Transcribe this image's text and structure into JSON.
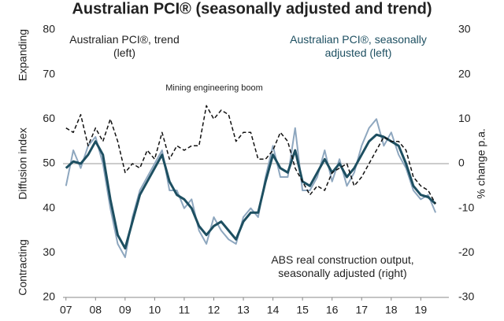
{
  "chart_data": {
    "type": "line",
    "title": "Australian PCI® (seasonally adjusted and trend)",
    "y_label": "Diffusion index",
    "y_label_top": "Expanding",
    "y_label_bottom": "Contracting",
    "y2_label": "% change p.a.",
    "annotation": "Mining engineering boom",
    "x": [
      7,
      7.25,
      7.5,
      7.75,
      8,
      8.25,
      8.5,
      8.75,
      9,
      9.25,
      9.5,
      9.75,
      10,
      10.25,
      10.5,
      10.75,
      11,
      11.25,
      11.5,
      11.75,
      12,
      12.25,
      12.5,
      12.75,
      13,
      13.25,
      13.5,
      13.75,
      14,
      14.25,
      14.5,
      14.75,
      15,
      15.25,
      15.5,
      15.75,
      16,
      16.25,
      16.5,
      16.75,
      17,
      17.25,
      17.5,
      17.75,
      18,
      18.25,
      18.5,
      18.75,
      19,
      19.25,
      19.5
    ],
    "xlim": [
      6.9,
      19.95
    ],
    "xticks": [
      {
        "value": 7,
        "label": "07"
      },
      {
        "value": 8,
        "label": "08"
      },
      {
        "value": 9,
        "label": "09"
      },
      {
        "value": 10,
        "label": "10"
      },
      {
        "value": 11,
        "label": "11"
      },
      {
        "value": 12,
        "label": "12"
      },
      {
        "value": 13,
        "label": "13"
      },
      {
        "value": 14,
        "label": "14"
      },
      {
        "value": 15,
        "label": "15"
      },
      {
        "value": 16,
        "label": "16"
      },
      {
        "value": 17,
        "label": "17"
      },
      {
        "value": 18,
        "label": "18"
      },
      {
        "value": 19,
        "label": "19"
      }
    ],
    "ylim": [
      20,
      80
    ],
    "yticks": [
      20,
      30,
      40,
      50,
      60,
      70,
      80
    ],
    "y2lim": [
      -30,
      30
    ],
    "y2ticks": [
      -30,
      -20,
      -10,
      0,
      10,
      20,
      30
    ],
    "hline": 50,
    "series": [
      {
        "name": "Australian PCI®, seasonally adjusted (left)",
        "color": "#8ea7bf",
        "width": 2,
        "values": [
          45,
          53,
          49,
          54,
          56,
          50,
          40,
          32,
          29,
          38,
          44,
          47,
          50,
          53,
          44,
          44,
          40,
          42,
          35,
          32,
          38,
          35,
          33,
          32,
          38,
          40,
          38,
          47,
          54,
          47,
          47,
          58,
          44,
          44,
          47,
          53,
          46,
          51,
          45,
          48,
          54,
          58,
          60,
          54,
          57,
          52,
          49,
          44,
          42,
          43,
          39
        ]
      },
      {
        "name": "Australian PCI®, trend (left)",
        "color": "#1d4f61",
        "width": 3,
        "values": [
          49,
          50.5,
          50,
          52,
          55,
          52,
          42,
          34,
          31,
          37,
          43,
          46,
          49,
          52,
          46,
          43,
          42,
          40,
          36,
          34,
          36,
          37,
          35,
          33,
          37,
          39,
          39,
          46,
          52,
          49,
          48,
          53,
          46,
          45,
          48,
          51,
          48,
          50,
          47,
          49,
          52,
          55,
          56.5,
          56,
          55,
          54,
          50,
          45,
          43,
          42.5,
          41
        ]
      },
      {
        "name": "ABS real construction output, seasonally adjusted (right)",
        "color": "#111111",
        "width": 1.5,
        "dash": "5,3",
        "axis": "y2",
        "values": [
          8,
          7,
          11,
          4,
          8,
          5,
          10,
          5,
          -2,
          0,
          -1,
          3,
          1,
          7,
          1,
          4,
          3,
          4,
          4,
          13,
          10,
          12,
          11,
          5,
          7,
          7,
          1,
          1,
          3,
          7,
          5,
          -1,
          -4,
          -7,
          -5,
          -6,
          -2,
          -1,
          0,
          -5,
          -3,
          0,
          3,
          6,
          5,
          5,
          3,
          -3,
          -5,
          -6,
          -9
        ]
      }
    ]
  }
}
